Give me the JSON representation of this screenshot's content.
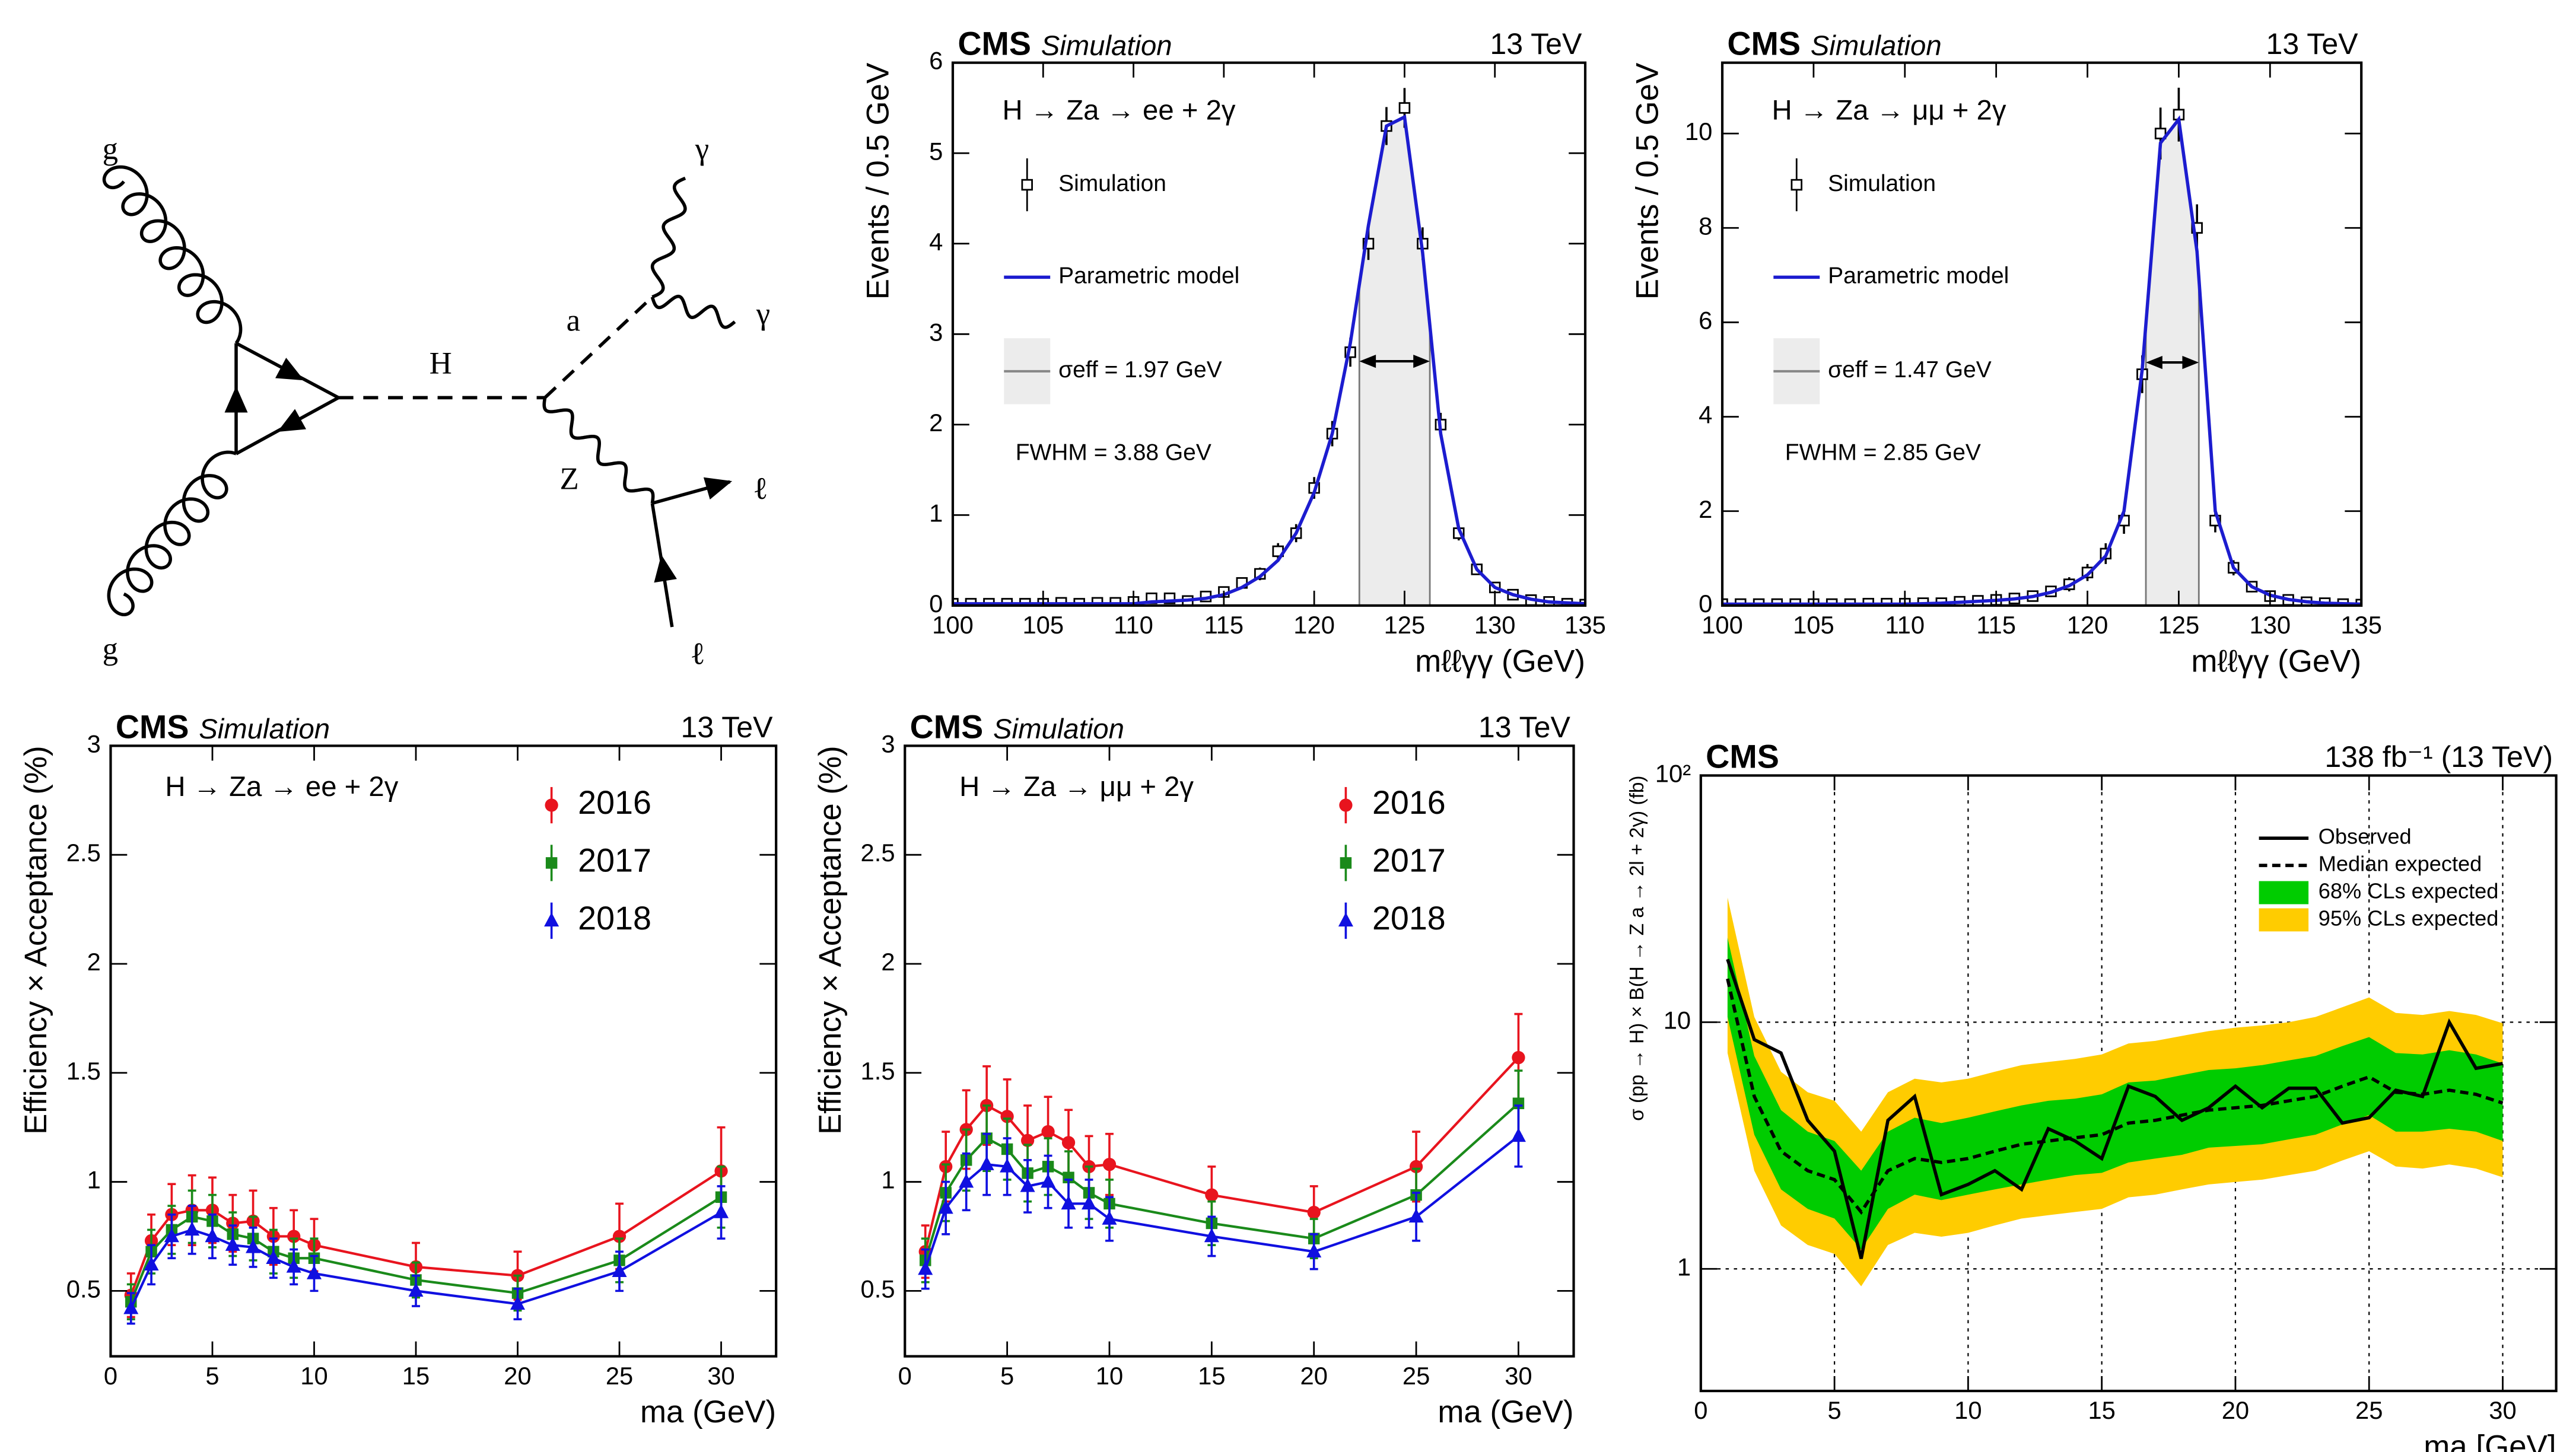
{
  "diagram": {
    "labels": [
      "g",
      "g",
      "H",
      "a",
      "Z",
      "γ",
      "γ",
      "ℓ",
      "ℓ"
    ]
  },
  "chart_data": [
    {
      "type": "errorbar",
      "title": "CMS",
      "subtitle": "Simulation",
      "energy": "13 TeV",
      "process": "H → Za → ee + 2γ",
      "sigma_eff_label": "σeff = 1.97 GeV",
      "fwhm_label": "FWHM = 3.88 GeV",
      "xlabel": "mℓℓγγ  (GeV)",
      "ylabel": "Events / 0.5 GeV",
      "xlim": [
        100,
        135
      ],
      "xticks": [
        100,
        105,
        110,
        115,
        120,
        125,
        130,
        135
      ],
      "ylim": [
        0,
        6
      ],
      "yticks": [
        0,
        1,
        2,
        3,
        4,
        5,
        6
      ],
      "shade": [
        122.5,
        126.4
      ],
      "x": [
        100,
        101,
        102,
        103,
        104,
        105,
        106,
        107,
        108,
        109,
        110,
        111,
        112,
        113,
        114,
        115,
        116,
        117,
        118,
        119,
        120,
        121,
        122,
        123,
        124,
        125,
        126,
        127,
        128,
        129,
        130,
        131,
        132,
        133,
        134,
        135
      ],
      "series": [
        {
          "name": "Simulation",
          "color": "#000000",
          "marker": "open-square",
          "line": false,
          "values": [
            0.02,
            0.02,
            0.02,
            0.02,
            0.02,
            0.02,
            0.03,
            0.02,
            0.03,
            0.03,
            0.04,
            0.08,
            0.08,
            0.05,
            0.1,
            0.15,
            0.25,
            0.35,
            0.6,
            0.8,
            1.3,
            1.9,
            2.8,
            4.0,
            5.3,
            5.5,
            4.0,
            2.0,
            0.8,
            0.4,
            0.2,
            0.12,
            0.06,
            0.04,
            0.02,
            0.01
          ],
          "errors": [
            0.03,
            0.03,
            0.03,
            0.03,
            0.03,
            0.03,
            0.03,
            0.03,
            0.03,
            0.03,
            0.03,
            0.04,
            0.04,
            0.03,
            0.04,
            0.05,
            0.06,
            0.07,
            0.09,
            0.1,
            0.12,
            0.14,
            0.16,
            0.18,
            0.21,
            0.22,
            0.18,
            0.13,
            0.08,
            0.06,
            0.04,
            0.04,
            0.03,
            0.03,
            0.02,
            0.02
          ]
        },
        {
          "name": "Parametric model",
          "color": "#1c1ccf",
          "line": true,
          "values": [
            0.02,
            0.02,
            0.02,
            0.02,
            0.02,
            0.02,
            0.02,
            0.02,
            0.02,
            0.02,
            0.02,
            0.04,
            0.05,
            0.06,
            0.08,
            0.12,
            0.2,
            0.32,
            0.5,
            0.8,
            1.25,
            1.9,
            2.9,
            4.2,
            5.3,
            5.4,
            3.9,
            1.9,
            0.85,
            0.4,
            0.2,
            0.12,
            0.07,
            0.04,
            0.03,
            0.02
          ]
        }
      ]
    },
    {
      "type": "errorbar",
      "title": "CMS",
      "subtitle": "Simulation",
      "energy": "13 TeV",
      "process": "H → Za → μμ + 2γ",
      "sigma_eff_label": "σeff = 1.47 GeV",
      "fwhm_label": "FWHM = 2.85 GeV",
      "xlabel": "mℓℓγγ  (GeV)",
      "ylabel": "Events / 0.5 GeV",
      "xlim": [
        100,
        135
      ],
      "xticks": [
        100,
        105,
        110,
        115,
        120,
        125,
        130,
        135
      ],
      "ylim": [
        0,
        11.5
      ],
      "yticks": [
        0,
        2,
        4,
        6,
        8,
        10
      ],
      "shade": [
        123.2,
        126.1
      ],
      "x": [
        100,
        101,
        102,
        103,
        104,
        105,
        106,
        107,
        108,
        109,
        110,
        111,
        112,
        113,
        114,
        115,
        116,
        117,
        118,
        119,
        120,
        121,
        122,
        123,
        124,
        125,
        126,
        127,
        128,
        129,
        130,
        131,
        132,
        133,
        134,
        135
      ],
      "series": [
        {
          "name": "Simulation",
          "color": "#000000",
          "marker": "open-square",
          "line": false,
          "values": [
            0.03,
            0.03,
            0.03,
            0.03,
            0.03,
            0.03,
            0.03,
            0.03,
            0.04,
            0.04,
            0.04,
            0.05,
            0.05,
            0.08,
            0.1,
            0.12,
            0.15,
            0.2,
            0.3,
            0.45,
            0.7,
            1.1,
            1.8,
            4.9,
            10.0,
            10.4,
            8.0,
            1.8,
            0.8,
            0.4,
            0.2,
            0.12,
            0.07,
            0.05,
            0.03,
            0.02
          ],
          "errors": [
            0.04,
            0.04,
            0.04,
            0.04,
            0.04,
            0.04,
            0.04,
            0.04,
            0.04,
            0.04,
            0.04,
            0.05,
            0.05,
            0.06,
            0.07,
            0.08,
            0.09,
            0.1,
            0.12,
            0.15,
            0.18,
            0.22,
            0.28,
            0.4,
            0.55,
            0.57,
            0.5,
            0.25,
            0.16,
            0.12,
            0.08,
            0.07,
            0.05,
            0.04,
            0.04,
            0.03
          ]
        },
        {
          "name": "Parametric model",
          "color": "#1c1ccf",
          "line": true,
          "values": [
            0.03,
            0.03,
            0.03,
            0.03,
            0.03,
            0.03,
            0.03,
            0.03,
            0.03,
            0.03,
            0.03,
            0.04,
            0.05,
            0.07,
            0.09,
            0.11,
            0.14,
            0.19,
            0.28,
            0.42,
            0.65,
            1.05,
            2.0,
            5.0,
            9.8,
            10.3,
            7.5,
            2.0,
            0.8,
            0.4,
            0.22,
            0.13,
            0.08,
            0.05,
            0.04,
            0.03
          ]
        }
      ]
    },
    {
      "type": "errorbar",
      "title": "CMS",
      "subtitle": "Simulation",
      "energy": "13 TeV",
      "process": "H → Za → ee + 2γ",
      "xlabel": "ma (GeV)",
      "ylabel": "Efficiency × Acceptance (%)",
      "xlim": [
        0,
        32.7
      ],
      "xticks": [
        0,
        5,
        10,
        15,
        20,
        25,
        30
      ],
      "ylim": [
        0.2,
        3
      ],
      "yticks": [
        0.5,
        1,
        1.5,
        2,
        2.5,
        3
      ],
      "x": [
        1,
        2,
        3,
        4,
        5,
        6,
        7,
        8,
        9,
        10,
        15,
        20,
        25,
        30
      ],
      "series": [
        {
          "name": "2016",
          "color": "#e8141e",
          "marker": "circle",
          "line": true,
          "values": [
            0.48,
            0.73,
            0.85,
            0.87,
            0.87,
            0.81,
            0.82,
            0.75,
            0.75,
            0.71,
            0.61,
            0.57,
            0.75,
            1.05
          ],
          "errors": [
            0.1,
            0.12,
            0.14,
            0.16,
            0.15,
            0.13,
            0.14,
            0.13,
            0.12,
            0.12,
            0.11,
            0.11,
            0.15,
            0.2
          ]
        },
        {
          "name": "2017",
          "color": "#1a8a1a",
          "marker": "square",
          "line": true,
          "values": [
            0.45,
            0.68,
            0.78,
            0.84,
            0.82,
            0.76,
            0.74,
            0.68,
            0.65,
            0.65,
            0.55,
            0.49,
            0.64,
            0.93
          ],
          "errors": [
            0.08,
            0.1,
            0.11,
            0.12,
            0.12,
            0.1,
            0.1,
            0.1,
            0.09,
            0.09,
            0.08,
            0.08,
            0.1,
            0.14
          ]
        },
        {
          "name": "2018",
          "color": "#1010e0",
          "marker": "triangle",
          "line": true,
          "values": [
            0.42,
            0.62,
            0.75,
            0.78,
            0.75,
            0.71,
            0.7,
            0.65,
            0.61,
            0.58,
            0.5,
            0.44,
            0.59,
            0.86
          ],
          "errors": [
            0.07,
            0.09,
            0.1,
            0.11,
            0.1,
            0.09,
            0.09,
            0.09,
            0.08,
            0.08,
            0.07,
            0.07,
            0.09,
            0.12
          ]
        }
      ]
    },
    {
      "type": "errorbar",
      "title": "CMS",
      "subtitle": "Simulation",
      "energy": "13 TeV",
      "process": "H → Za → μμ + 2γ",
      "xlabel": "ma (GeV)",
      "ylabel": "Efficiency × Acceptance (%)",
      "xlim": [
        0,
        32.7
      ],
      "xticks": [
        0,
        5,
        10,
        15,
        20,
        25,
        30
      ],
      "ylim": [
        0.2,
        3
      ],
      "yticks": [
        0.5,
        1,
        1.5,
        2,
        2.5,
        3
      ],
      "x": [
        1,
        2,
        3,
        4,
        5,
        6,
        7,
        8,
        9,
        10,
        15,
        20,
        25,
        30
      ],
      "series": [
        {
          "name": "2016",
          "color": "#e8141e",
          "marker": "circle",
          "line": true,
          "values": [
            0.68,
            1.07,
            1.24,
            1.35,
            1.3,
            1.19,
            1.23,
            1.18,
            1.07,
            1.08,
            0.94,
            0.86,
            1.07,
            1.57
          ],
          "errors": [
            0.12,
            0.16,
            0.18,
            0.18,
            0.17,
            0.16,
            0.16,
            0.15,
            0.14,
            0.14,
            0.13,
            0.12,
            0.16,
            0.2
          ]
        },
        {
          "name": "2017",
          "color": "#1a8a1a",
          "marker": "square",
          "line": true,
          "values": [
            0.64,
            0.95,
            1.1,
            1.2,
            1.15,
            1.04,
            1.07,
            1.02,
            0.95,
            0.9,
            0.81,
            0.74,
            0.94,
            1.36
          ],
          "errors": [
            0.1,
            0.13,
            0.14,
            0.15,
            0.14,
            0.13,
            0.13,
            0.12,
            0.12,
            0.11,
            0.1,
            0.09,
            0.12,
            0.15
          ]
        },
        {
          "name": "2018",
          "color": "#1010e0",
          "marker": "triangle",
          "line": true,
          "values": [
            0.6,
            0.88,
            1.0,
            1.08,
            1.07,
            0.98,
            1.0,
            0.9,
            0.9,
            0.83,
            0.75,
            0.68,
            0.84,
            1.21
          ],
          "errors": [
            0.09,
            0.12,
            0.13,
            0.14,
            0.13,
            0.12,
            0.12,
            0.11,
            0.11,
            0.1,
            0.09,
            0.08,
            0.11,
            0.14
          ]
        }
      ]
    },
    {
      "type": "line",
      "title": "CMS",
      "energy": "138 fb⁻¹ (13 TeV)",
      "xlabel": "ma [GeV]",
      "ylabel": "σ (pp → H) × B(H → Z a → 2l + 2γ) (fb)",
      "log_y": true,
      "grid": true,
      "xlim": [
        0,
        32
      ],
      "xticks": [
        0,
        5,
        10,
        15,
        20,
        25,
        30
      ],
      "ylim": [
        0.32,
        100
      ],
      "yticks": [
        1,
        10,
        {
          "value": 100,
          "label": "10²"
        }
      ],
      "x": [
        1,
        2,
        3,
        4,
        5,
        6,
        7,
        8,
        9,
        10,
        11,
        12,
        13,
        14,
        15,
        16,
        17,
        18,
        19,
        20,
        21,
        22,
        23,
        24,
        25,
        26,
        27,
        28,
        29,
        30
      ],
      "bands": [
        {
          "name": "68% CLs expected",
          "color": "#00cc00",
          "low": [
            10.5,
            3.5,
            2.1,
            1.75,
            1.6,
            1.2,
            1.75,
            2,
            1.9,
            2,
            2.1,
            2.2,
            2.3,
            2.4,
            2.45,
            2.7,
            2.8,
            2.9,
            3.1,
            3.15,
            3.2,
            3.35,
            3.5,
            3.85,
            4.2,
            3.6,
            3.6,
            3.7,
            3.6,
            3.3
          ],
          "high": [
            22,
            7.3,
            4.4,
            3.6,
            3.3,
            2.5,
            3.6,
            4.1,
            3.9,
            4.1,
            4.35,
            4.6,
            4.8,
            4.9,
            5.1,
            5.7,
            5.8,
            6.1,
            6.4,
            6.5,
            6.7,
            7,
            7.3,
            8,
            8.7,
            7.5,
            7.4,
            7.7,
            7.4,
            6.8
          ]
        },
        {
          "name": "95% CLs expected",
          "color": "#ffcc00",
          "low": [
            7.5,
            2.5,
            1.5,
            1.25,
            1.15,
            0.85,
            1.25,
            1.4,
            1.35,
            1.4,
            1.5,
            1.6,
            1.65,
            1.7,
            1.75,
            1.95,
            2,
            2.1,
            2.2,
            2.25,
            2.3,
            2.4,
            2.5,
            2.75,
            3,
            2.6,
            2.55,
            2.65,
            2.55,
            2.35
          ],
          "high": [
            32,
            10.5,
            6.3,
            5.2,
            4.8,
            3.6,
            5.2,
            5.9,
            5.7,
            5.9,
            6.3,
            6.7,
            6.9,
            7.1,
            7.4,
            8.2,
            8.4,
            8.8,
            9.2,
            9.5,
            9.7,
            10,
            10.5,
            11.5,
            12.6,
            10.9,
            10.7,
            11.1,
            10.7,
            9.9
          ]
        }
      ],
      "series": [
        {
          "name": "Observed",
          "color": "#000000",
          "dash": false,
          "values": [
            18,
            8.5,
            7.5,
            4,
            3,
            1.1,
            4,
            5,
            2,
            2.2,
            2.5,
            2.1,
            3.7,
            3.3,
            2.8,
            5.5,
            5,
            4,
            4.5,
            5.5,
            4.5,
            5.4,
            5.4,
            3.9,
            4.1,
            5.3,
            5,
            10,
            6.5,
            6.8
          ]
        },
        {
          "name": "Median expected",
          "color": "#000000",
          "dash": true,
          "values": [
            15,
            5,
            3,
            2.5,
            2.3,
            1.7,
            2.5,
            2.8,
            2.7,
            2.8,
            3,
            3.2,
            3.3,
            3.4,
            3.5,
            3.9,
            4,
            4.2,
            4.4,
            4.5,
            4.6,
            4.8,
            5,
            5.5,
            6,
            5.2,
            5.1,
            5.3,
            5.1,
            4.7
          ]
        }
      ]
    }
  ]
}
